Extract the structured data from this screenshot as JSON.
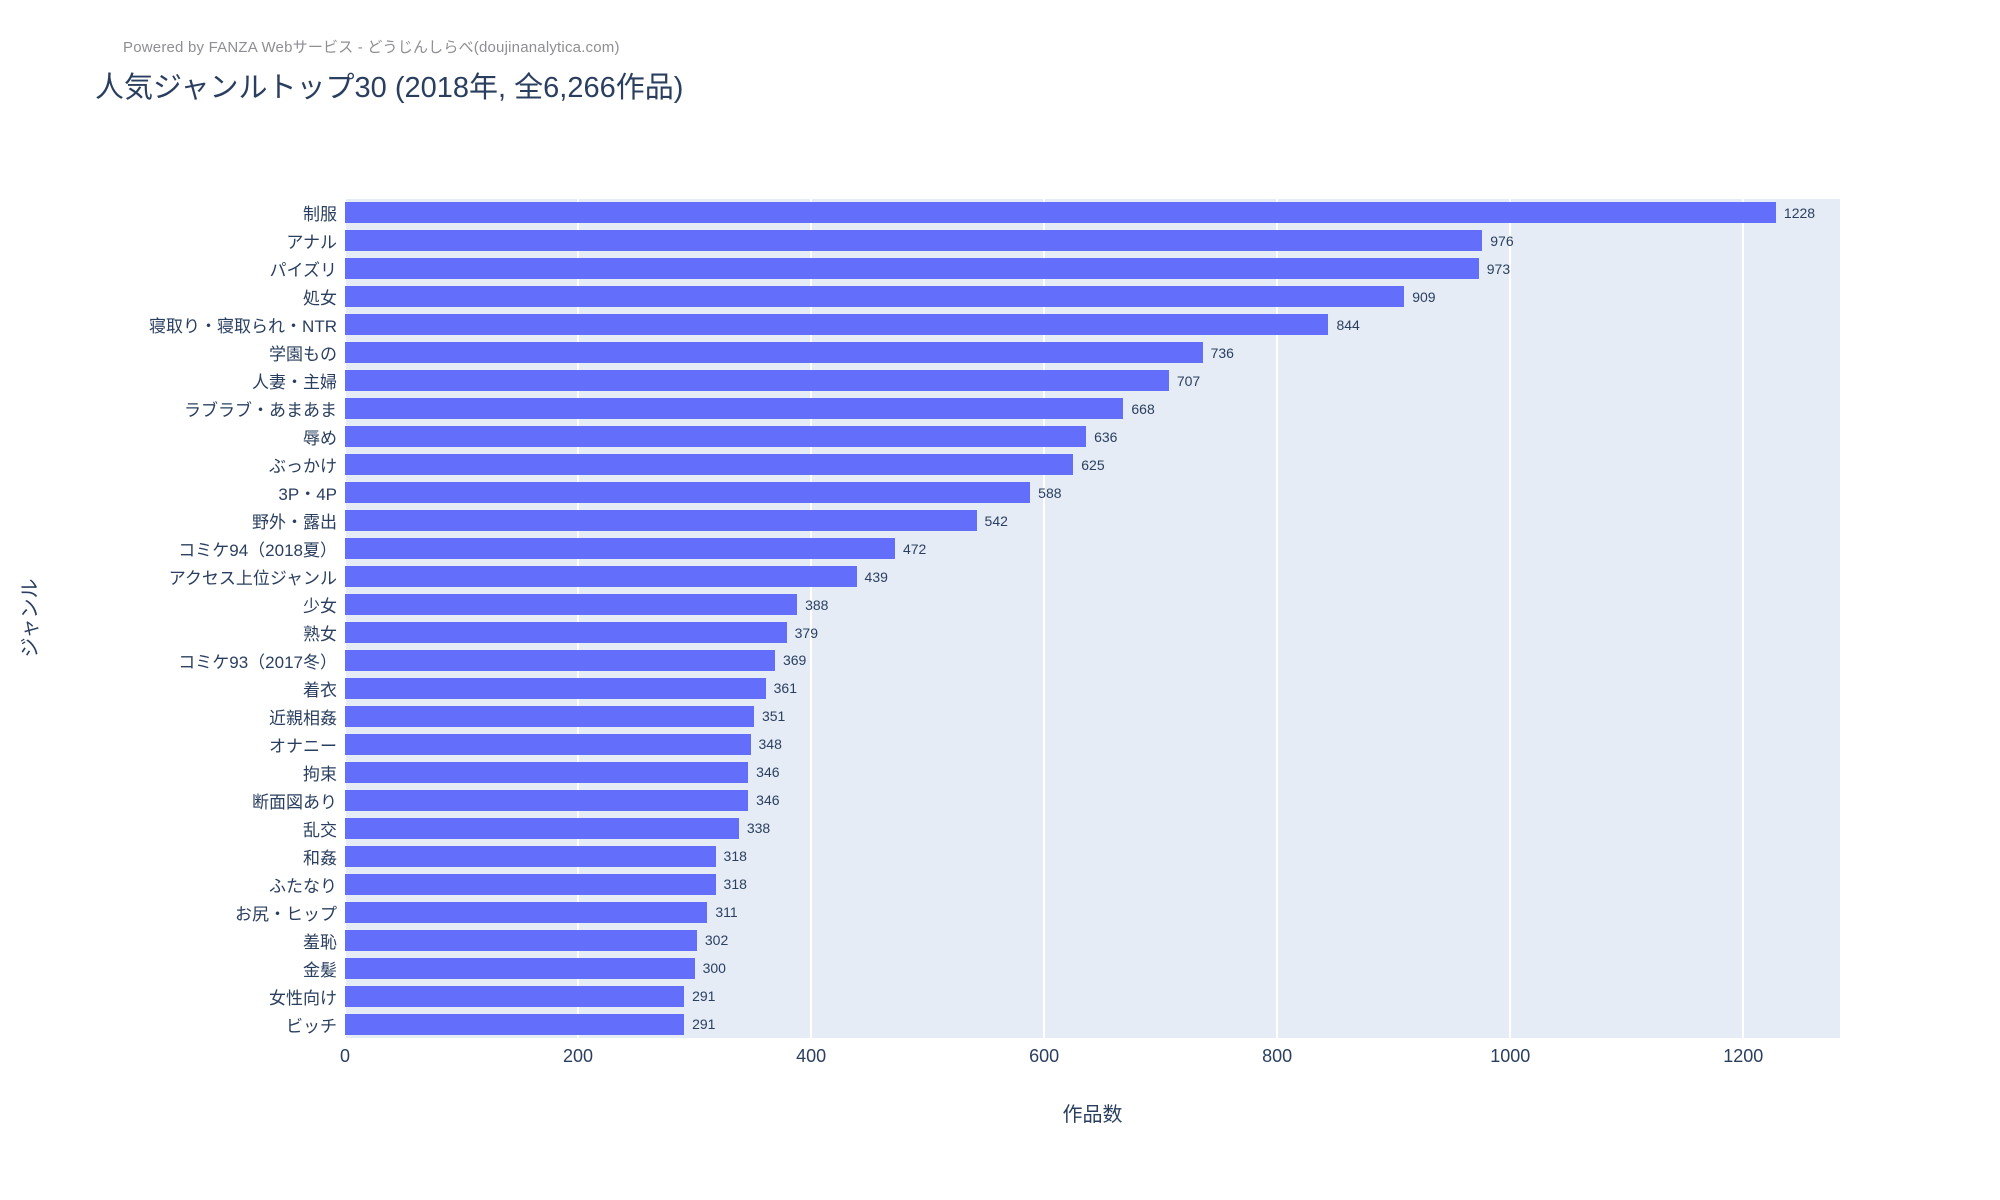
{
  "attribution": "Powered by FANZA Webサービス - どうじんしらべ(doujinanalytica.com)",
  "header": {
    "title": "人気ジャンルトップ30 (2018年, 全6,266作品)"
  },
  "chart_data": {
    "type": "bar",
    "orientation": "horizontal",
    "title": "人気ジャンルトップ30 (2018年, 全6,266作品)",
    "xlabel": "作品数",
    "ylabel": "ジャンル",
    "categories": [
      "制服",
      "アナル",
      "パイズリ",
      "処女",
      "寝取り・寝取られ・NTR",
      "学園もの",
      "人妻・主婦",
      "ラブラブ・あまあま",
      "辱め",
      "ぶっかけ",
      "3P・4P",
      "野外・露出",
      "コミケ94（2018夏）",
      "アクセス上位ジャンル",
      "少女",
      "熟女",
      "コミケ93（2017冬）",
      "着衣",
      "近親相姦",
      "オナニー",
      "拘束",
      "断面図あり",
      "乱交",
      "和姦",
      "ふたなり",
      "お尻・ヒップ",
      "羞恥",
      "金髪",
      "女性向け",
      "ビッチ"
    ],
    "values": [
      1228,
      976,
      973,
      909,
      844,
      736,
      707,
      668,
      636,
      625,
      588,
      542,
      472,
      439,
      388,
      379,
      369,
      361,
      351,
      348,
      346,
      346,
      338,
      318,
      318,
      311,
      302,
      300,
      291,
      291
    ],
    "xticks": [
      0,
      200,
      400,
      600,
      800,
      1000,
      1200
    ],
    "xlim": [
      0,
      1283
    ],
    "grid": true,
    "legend": false,
    "value_labels": "outside",
    "colors": {
      "bar": "#636efa",
      "plot_background": "#e5ecf6",
      "gridline": "#ffffff",
      "text": "#2a3f5f",
      "attribution_text": "#8e8e94"
    }
  }
}
